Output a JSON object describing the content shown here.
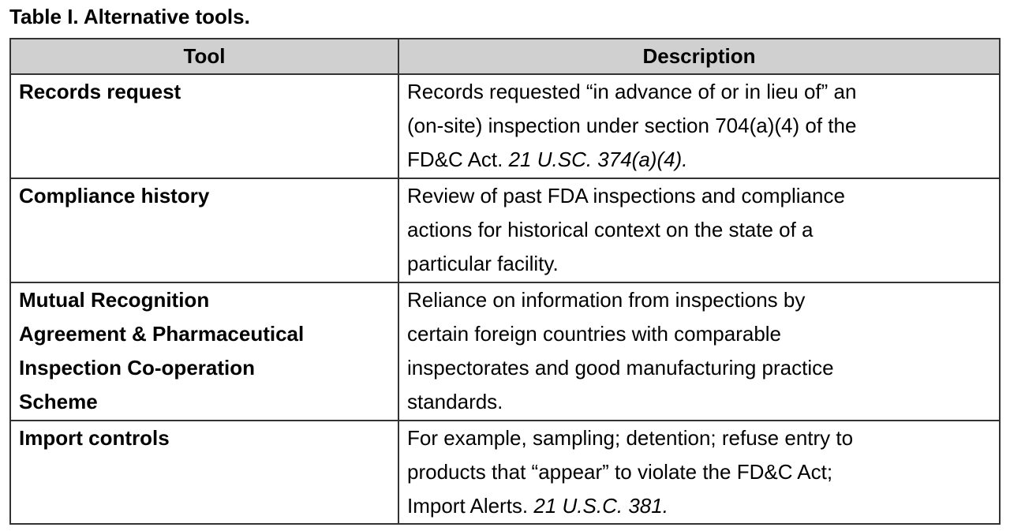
{
  "title": "Table I. Alternative tools.",
  "headers": [
    "Tool",
    "Description"
  ],
  "rows": [
    {
      "tool": [
        "Records request"
      ],
      "description": [
        [
          {
            "t": "Records requested “in advance of or in lieu of” an"
          }
        ],
        [
          {
            "t": "(on-site) inspection under section 704(a)(4) of the"
          }
        ],
        [
          {
            "t": "FD&C Act. "
          },
          {
            "t": "21 U.SC. 374(a)(4).",
            "i": true
          }
        ]
      ]
    },
    {
      "tool": [
        "Compliance history"
      ],
      "description": [
        [
          {
            "t": "Review of past FDA inspections and compliance"
          }
        ],
        [
          {
            "t": "actions for historical context on the state of a"
          }
        ],
        [
          {
            "t": "particular facility."
          }
        ]
      ]
    },
    {
      "tool": [
        "Mutual Recognition",
        "Agreement & Pharmaceutical",
        "Inspection Co-operation",
        "Scheme"
      ],
      "description": [
        [
          {
            "t": "Reliance on information from inspections by"
          }
        ],
        [
          {
            "t": "certain foreign countries with comparable"
          }
        ],
        [
          {
            "t": "inspectorates and good manufacturing practice"
          }
        ],
        [
          {
            "t": "standards."
          }
        ]
      ]
    },
    {
      "tool": [
        "Import controls"
      ],
      "description": [
        [
          {
            "t": "For example, sampling; detention; refuse entry to"
          }
        ],
        [
          {
            "t": "products that “appear” to violate the FD&C Act;"
          }
        ],
        [
          {
            "t": "Import Alerts. "
          },
          {
            "t": "21 U.S.C. 381.",
            "i": true
          }
        ]
      ]
    }
  ]
}
